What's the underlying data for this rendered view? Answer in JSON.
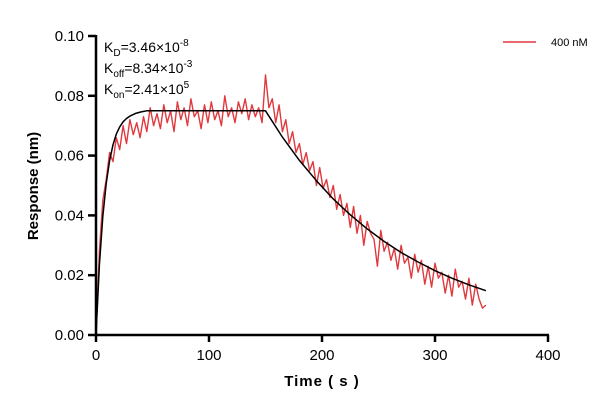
{
  "chart_data": {
    "type": "line",
    "xlabel": "Time ( s )",
    "ylabel": "Response (nm)",
    "xlim": [
      0,
      400
    ],
    "ylim": [
      0,
      0.1
    ],
    "xticks": [
      "0",
      "100",
      "200",
      "300",
      "400"
    ],
    "yticks": [
      "0.00",
      "0.02",
      "0.04",
      "0.06",
      "0.08",
      "0.10"
    ],
    "grid": false,
    "legend_position": "top-right",
    "annotations": [
      {
        "base": "K",
        "sub": "D",
        "eq": "=3.46×10",
        "sup": "-8"
      },
      {
        "base": "K",
        "sub": "off",
        "eq": "=8.34×10",
        "sup": "-3"
      },
      {
        "base": "K",
        "sub": "on",
        "eq": "=2.41×10",
        "sup": "5"
      }
    ],
    "series": [
      {
        "name": "400 nM",
        "color": "#e0393e",
        "x_start": 0,
        "x_step": 3,
        "values": [
          0.0,
          0.028,
          0.045,
          0.052,
          0.061,
          0.058,
          0.066,
          0.062,
          0.07,
          0.064,
          0.072,
          0.067,
          0.071,
          0.066,
          0.073,
          0.068,
          0.076,
          0.07,
          0.074,
          0.069,
          0.077,
          0.071,
          0.075,
          0.068,
          0.078,
          0.072,
          0.076,
          0.07,
          0.079,
          0.073,
          0.075,
          0.069,
          0.077,
          0.071,
          0.078,
          0.072,
          0.075,
          0.07,
          0.08,
          0.073,
          0.076,
          0.071,
          0.078,
          0.074,
          0.079,
          0.072,
          0.077,
          0.073,
          0.076,
          0.071,
          0.087,
          0.076,
          0.079,
          0.071,
          0.077,
          0.068,
          0.072,
          0.064,
          0.068,
          0.061,
          0.064,
          0.057,
          0.061,
          0.055,
          0.058,
          0.05,
          0.056,
          0.049,
          0.052,
          0.046,
          0.05,
          0.042,
          0.047,
          0.04,
          0.044,
          0.036,
          0.043,
          0.034,
          0.04,
          0.03,
          0.038,
          0.034,
          0.032,
          0.023,
          0.035,
          0.028,
          0.031,
          0.025,
          0.029,
          0.022,
          0.03,
          0.024,
          0.026,
          0.019,
          0.027,
          0.021,
          0.025,
          0.017,
          0.023,
          0.016,
          0.024,
          0.019,
          0.021,
          0.014,
          0.02,
          0.013,
          0.022,
          0.016,
          0.018,
          0.012,
          0.019,
          0.01,
          0.017,
          0.012,
          0.009,
          0.01
        ]
      },
      {
        "color": "#000000",
        "x": [
          0,
          3,
          6,
          9,
          12,
          15,
          18,
          21,
          24,
          27,
          30,
          35,
          40,
          45,
          150,
          165,
          180,
          195,
          210,
          225,
          240,
          255,
          270,
          285,
          300,
          315,
          330,
          345
        ],
        "values": [
          0.0,
          0.0234,
          0.0396,
          0.0506,
          0.0583,
          0.0636,
          0.0672,
          0.0696,
          0.0713,
          0.0724,
          0.0732,
          0.0741,
          0.0746,
          0.075,
          0.075,
          0.0662,
          0.0584,
          0.0516,
          0.0455,
          0.0402,
          0.0355,
          0.0313,
          0.0276,
          0.0244,
          0.0215,
          0.019,
          0.0168,
          0.0148
        ]
      }
    ]
  }
}
